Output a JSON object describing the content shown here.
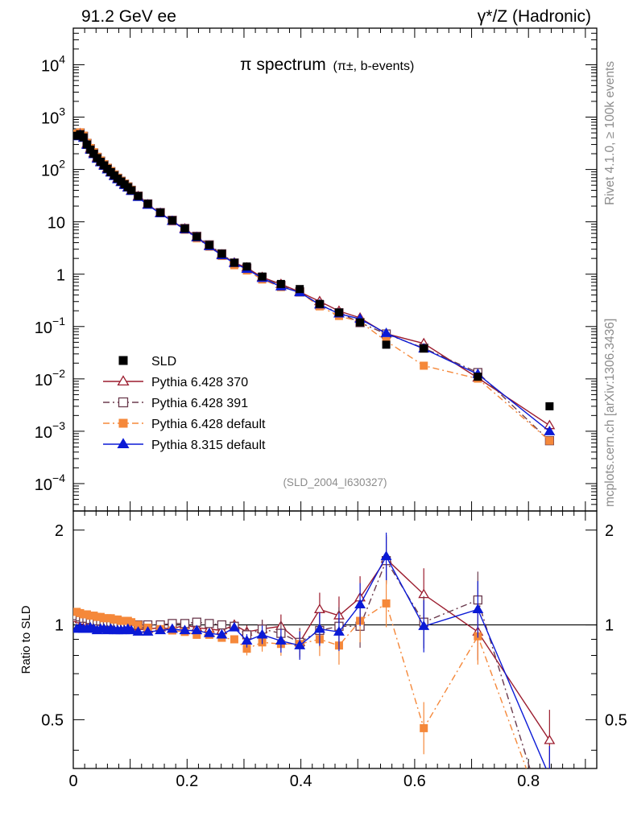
{
  "header": {
    "left": "91.2 GeV ee",
    "right": "γ*/Z (Hadronic)"
  },
  "side": {
    "rivet": "Rivet 4.1.0, ≥ 100k events",
    "mcplots": "mcplots.cern.ch [arXiv:1306.3436]"
  },
  "chart_data": {
    "type": "scatter",
    "title": "π spectrum",
    "subtitle": "(π±, b-events)",
    "analysis": "(SLD_2004_I630327)",
    "ratio_ylabel": "Ratio to SLD",
    "xlim": [
      0,
      0.92
    ],
    "ylim": [
      3e-05,
      50000
    ],
    "ratio_ylim": [
      0.35,
      2.3
    ],
    "x_ticks": [
      "0",
      "0.2",
      "0.4",
      "0.6",
      "0.8"
    ],
    "y_tick_labels": [
      {
        "base": "10",
        "exp": "4",
        "value": 10000
      },
      {
        "base": "10",
        "exp": "3",
        "value": 1000
      },
      {
        "base": "10",
        "exp": "2",
        "value": 100
      },
      {
        "base": "10",
        "exp": "",
        "value": 10
      },
      {
        "base": "1",
        "exp": "",
        "value": 1
      },
      {
        "base": "10",
        "exp": "−1",
        "value": 0.1
      },
      {
        "base": "10",
        "exp": "−2",
        "value": 0.01
      },
      {
        "base": "10",
        "exp": "−3",
        "value": 0.001
      },
      {
        "base": "10",
        "exp": "−4",
        "value": 0.0001
      }
    ],
    "ratio_ticks": [
      "0.5",
      "1",
      "2"
    ],
    "x": [
      0.006,
      0.012,
      0.018,
      0.024,
      0.03,
      0.036,
      0.042,
      0.048,
      0.054,
      0.06,
      0.066,
      0.072,
      0.078,
      0.084,
      0.09,
      0.096,
      0.102,
      0.114,
      0.131,
      0.153,
      0.174,
      0.196,
      0.217,
      0.239,
      0.261,
      0.283,
      0.305,
      0.332,
      0.365,
      0.398,
      0.433,
      0.467,
      0.504,
      0.55,
      0.616,
      0.711,
      0.837
    ],
    "series": [
      {
        "name": "SLD",
        "color": "#000000",
        "marker": "square-filled",
        "values": [
          440,
          470,
          410,
          300,
          240,
          200,
          165,
          140,
          120,
          103,
          89,
          77,
          67,
          59,
          52,
          46,
          40,
          31,
          22,
          15,
          10.6,
          7.4,
          5.2,
          3.6,
          2.45,
          1.65,
          1.4,
          0.9,
          0.65,
          0.52,
          0.27,
          0.185,
          0.12,
          0.045,
          0.038,
          0.011,
          0.003
        ]
      },
      {
        "name": "Pythia 6.428 370",
        "color": "#9b1c2e",
        "marker": "triangle-open",
        "line": "solid",
        "ratio": [
          1.05,
          1.04,
          1.03,
          1.02,
          1.03,
          1.02,
          1.01,
          1.0,
          1.02,
          1.01,
          1.0,
          0.99,
          1.0,
          0.99,
          1.0,
          0.99,
          0.98,
          0.99,
          0.97,
          0.98,
          0.97,
          1.0,
          0.98,
          0.97,
          0.96,
          1.0,
          0.95,
          0.97,
          0.99,
          0.88,
          1.12,
          1.07,
          1.22,
          1.62,
          1.25,
          0.95,
          0.43
        ]
      },
      {
        "name": "Pythia 6.428 391",
        "color": "#6b3b4e",
        "marker": "square-open",
        "line": "dashdot",
        "ratio": [
          1.07,
          1.06,
          1.05,
          1.05,
          1.04,
          1.03,
          1.03,
          1.03,
          1.02,
          1.02,
          1.02,
          1.02,
          1.01,
          1.01,
          1.01,
          1.01,
          1.0,
          1.0,
          1.0,
          1.0,
          1.01,
          1.01,
          1.02,
          1.01,
          1.0,
          0.99,
          0.93,
          0.97,
          0.94,
          0.88,
          0.96,
          0.99,
          0.99,
          1.6,
          1.02,
          1.2,
          0.22
        ]
      },
      {
        "name": "Pythia 6.428 default",
        "color": "#f5883a",
        "marker": "square-filled",
        "line": "dashdot",
        "ratio": [
          1.1,
          1.09,
          1.08,
          1.08,
          1.07,
          1.07,
          1.06,
          1.06,
          1.05,
          1.05,
          1.05,
          1.04,
          1.04,
          1.03,
          1.03,
          1.03,
          1.02,
          1.0,
          0.98,
          0.97,
          0.96,
          0.95,
          0.93,
          0.93,
          0.91,
          0.9,
          0.84,
          0.88,
          0.87,
          0.87,
          0.9,
          0.86,
          1.03,
          1.17,
          0.47,
          0.92,
          0.22
        ]
      },
      {
        "name": "Pythia 8.315 default",
        "color": "#0b1ad6",
        "marker": "triangle-filled",
        "line": "solid",
        "ratio": [
          0.97,
          0.98,
          0.97,
          0.97,
          0.98,
          0.97,
          0.96,
          0.97,
          0.97,
          0.96,
          0.97,
          0.96,
          0.96,
          0.96,
          0.96,
          0.97,
          0.96,
          0.95,
          0.95,
          0.96,
          0.97,
          0.96,
          0.96,
          0.94,
          0.93,
          0.98,
          0.89,
          0.93,
          0.89,
          0.86,
          0.97,
          0.95,
          1.16,
          1.65,
          0.99,
          1.12,
          0.33
        ]
      }
    ]
  }
}
